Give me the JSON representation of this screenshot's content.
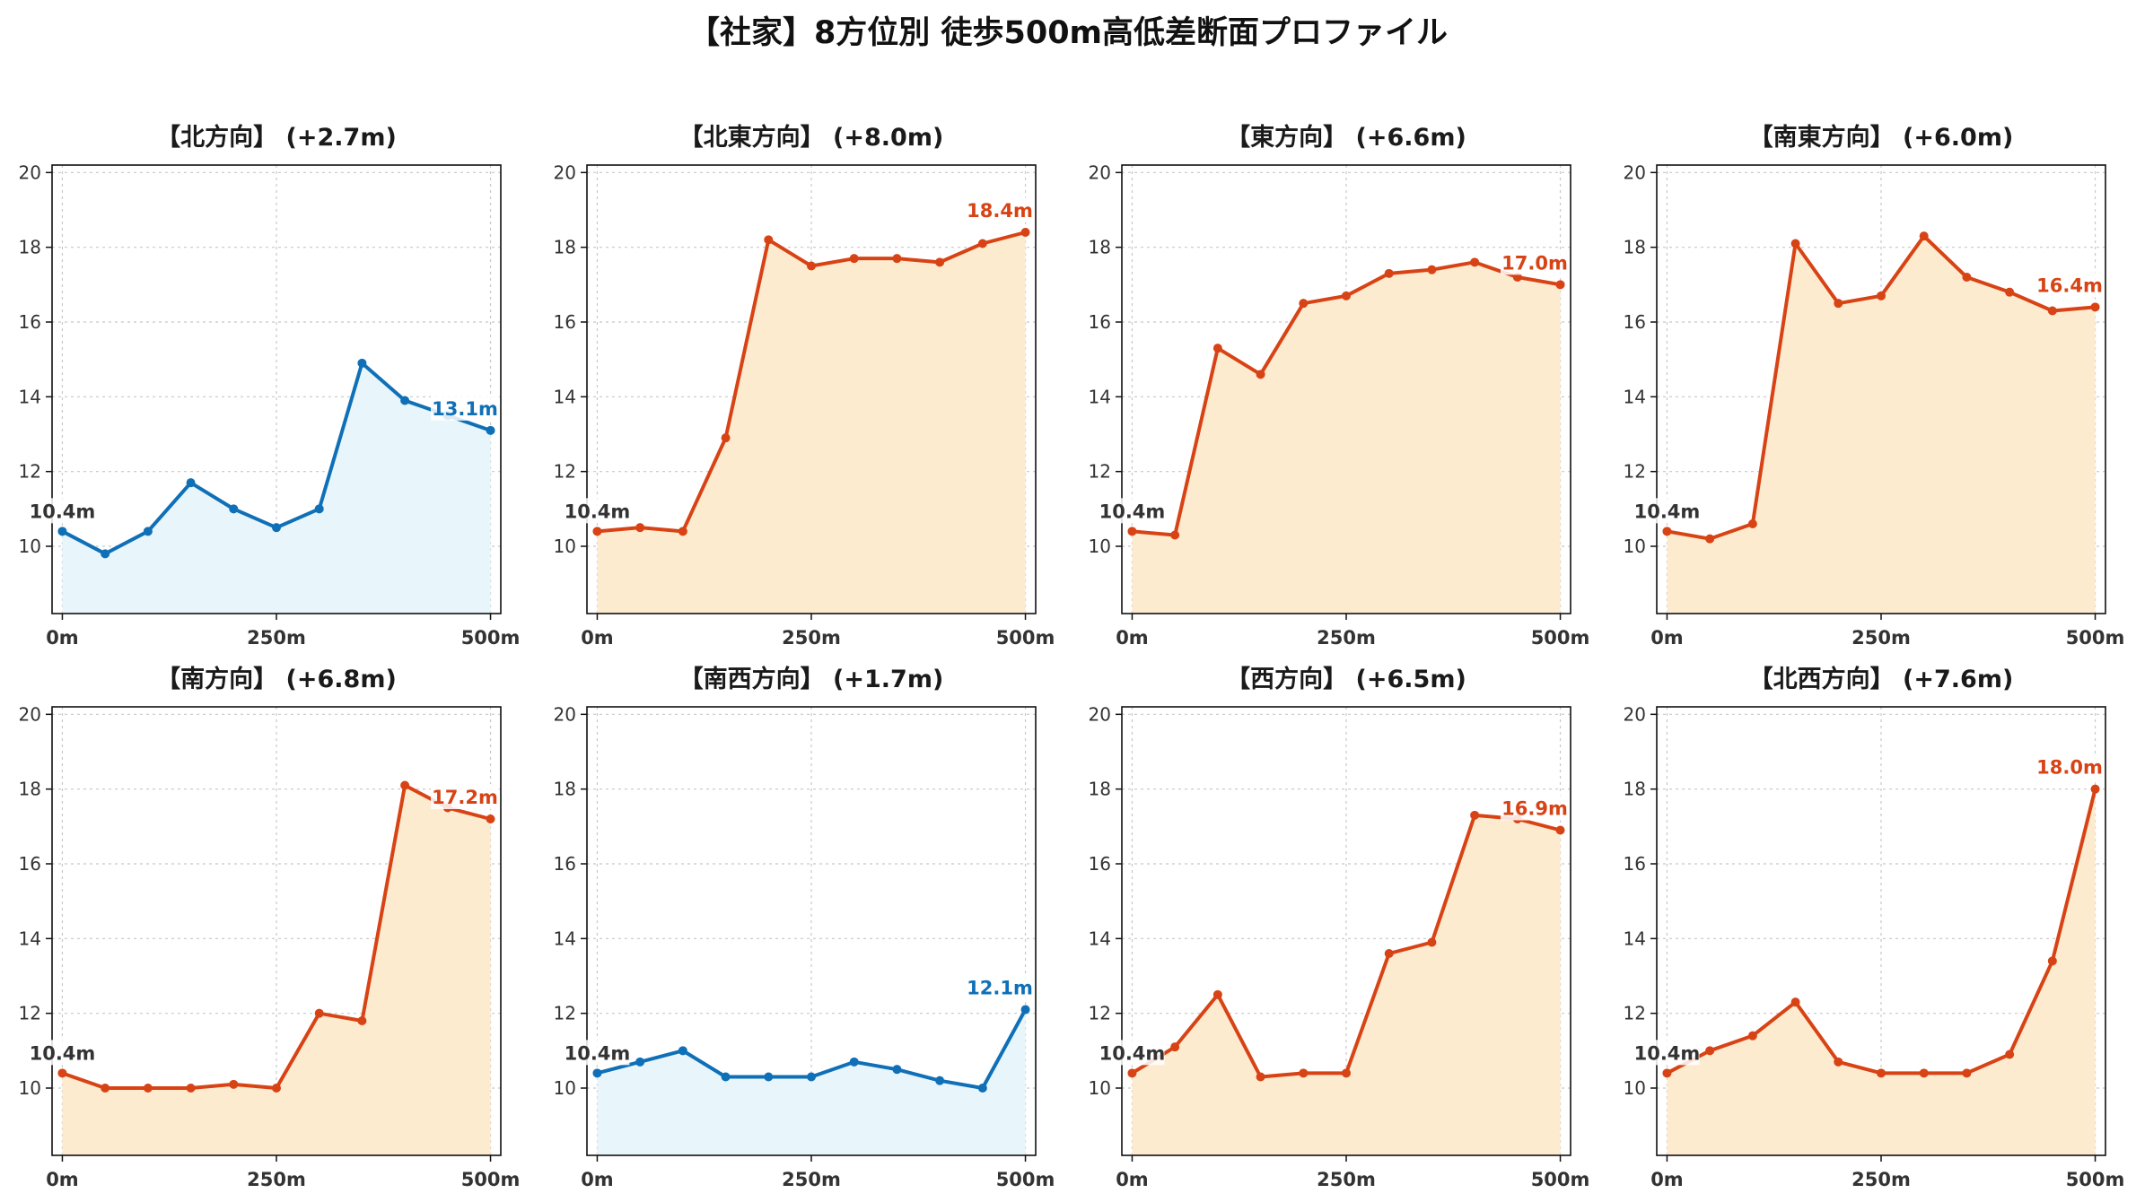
{
  "title": "【社家】8方位別 徒歩500m高低差断面プロファイル",
  "colors": {
    "up": "#d84315",
    "up_fill": "#fdebd0",
    "down": "#0f70b7",
    "down_fill": "#e8f5fb"
  },
  "chart_data": [
    {
      "type": "area",
      "title": "【北方向】 (+2.7m)",
      "trend": "flat",
      "x": [
        0,
        50,
        100,
        150,
        200,
        250,
        300,
        350,
        400,
        450,
        500
      ],
      "values": [
        10.4,
        9.8,
        10.4,
        11.7,
        11.0,
        10.5,
        11.0,
        14.9,
        13.9,
        13.5,
        13.1
      ],
      "start_label": "10.4m",
      "end_label": "13.1m",
      "xticks": [
        "0m",
        "250m",
        "500m"
      ],
      "yticks": [
        10,
        12,
        14,
        16,
        18,
        20
      ],
      "ylim": [
        8.2,
        20.2
      ],
      "xlim": [
        -12,
        512
      ],
      "grid": true
    },
    {
      "type": "area",
      "title": "【北東方向】 (+8.0m)",
      "trend": "up",
      "x": [
        0,
        50,
        100,
        150,
        200,
        250,
        300,
        350,
        400,
        450,
        500
      ],
      "values": [
        10.4,
        10.5,
        10.4,
        12.9,
        18.2,
        17.5,
        17.7,
        17.7,
        17.6,
        18.1,
        18.4
      ],
      "start_label": "10.4m",
      "end_label": "18.4m",
      "xticks": [
        "0m",
        "250m",
        "500m"
      ],
      "yticks": [
        10,
        12,
        14,
        16,
        18,
        20
      ],
      "ylim": [
        8.2,
        20.2
      ],
      "xlim": [
        -12,
        512
      ],
      "grid": true
    },
    {
      "type": "area",
      "title": "【東方向】 (+6.6m)",
      "trend": "up",
      "x": [
        0,
        50,
        100,
        150,
        200,
        250,
        300,
        350,
        400,
        450,
        500
      ],
      "values": [
        10.4,
        10.3,
        15.3,
        14.6,
        16.5,
        16.7,
        17.3,
        17.4,
        17.6,
        17.2,
        17.0
      ],
      "start_label": "10.4m",
      "end_label": "17.0m",
      "xticks": [
        "0m",
        "250m",
        "500m"
      ],
      "yticks": [
        10,
        12,
        14,
        16,
        18,
        20
      ],
      "ylim": [
        8.2,
        20.2
      ],
      "xlim": [
        -12,
        512
      ],
      "grid": true
    },
    {
      "type": "area",
      "title": "【南東方向】 (+6.0m)",
      "trend": "up",
      "x": [
        0,
        50,
        100,
        150,
        200,
        250,
        300,
        350,
        400,
        450,
        500
      ],
      "values": [
        10.4,
        10.2,
        10.6,
        18.1,
        16.5,
        16.7,
        18.3,
        17.2,
        16.8,
        16.3,
        16.4
      ],
      "start_label": "10.4m",
      "end_label": "16.4m",
      "xticks": [
        "0m",
        "250m",
        "500m"
      ],
      "yticks": [
        10,
        12,
        14,
        16,
        18,
        20
      ],
      "ylim": [
        8.2,
        20.2
      ],
      "xlim": [
        -12,
        512
      ],
      "grid": true
    },
    {
      "type": "area",
      "title": "【南方向】 (+6.8m)",
      "trend": "up",
      "x": [
        0,
        50,
        100,
        150,
        200,
        250,
        300,
        350,
        400,
        450,
        500
      ],
      "values": [
        10.4,
        10.0,
        10.0,
        10.0,
        10.1,
        10.0,
        12.0,
        11.8,
        18.1,
        17.5,
        17.2
      ],
      "start_label": "10.4m",
      "end_label": "17.2m",
      "xticks": [
        "0m",
        "250m",
        "500m"
      ],
      "yticks": [
        10,
        12,
        14,
        16,
        18,
        20
      ],
      "ylim": [
        8.2,
        20.2
      ],
      "xlim": [
        -12,
        512
      ],
      "grid": true
    },
    {
      "type": "area",
      "title": "【南西方向】 (+1.7m)",
      "trend": "flat",
      "x": [
        0,
        50,
        100,
        150,
        200,
        250,
        300,
        350,
        400,
        450,
        500
      ],
      "values": [
        10.4,
        10.7,
        11.0,
        10.3,
        10.3,
        10.3,
        10.7,
        10.5,
        10.2,
        10.0,
        12.1
      ],
      "start_label": "10.4m",
      "end_label": "12.1m",
      "xticks": [
        "0m",
        "250m",
        "500m"
      ],
      "yticks": [
        10,
        12,
        14,
        16,
        18,
        20
      ],
      "ylim": [
        8.2,
        20.2
      ],
      "xlim": [
        -12,
        512
      ],
      "grid": true
    },
    {
      "type": "area",
      "title": "【西方向】 (+6.5m)",
      "trend": "up",
      "x": [
        0,
        50,
        100,
        150,
        200,
        250,
        300,
        350,
        400,
        450,
        500
      ],
      "values": [
        10.4,
        11.1,
        12.5,
        10.3,
        10.4,
        10.4,
        13.6,
        13.9,
        17.3,
        17.2,
        16.9
      ],
      "start_label": "10.4m",
      "end_label": "16.9m",
      "xticks": [
        "0m",
        "250m",
        "500m"
      ],
      "yticks": [
        10,
        12,
        14,
        16,
        18,
        20
      ],
      "ylim": [
        8.2,
        20.2
      ],
      "xlim": [
        -12,
        512
      ],
      "grid": true
    },
    {
      "type": "area",
      "title": "【北西方向】 (+7.6m)",
      "trend": "up",
      "x": [
        0,
        50,
        100,
        150,
        200,
        250,
        300,
        350,
        400,
        450,
        500
      ],
      "values": [
        10.4,
        11.0,
        11.4,
        12.3,
        10.7,
        10.4,
        10.4,
        10.4,
        10.9,
        13.4,
        18.0
      ],
      "start_label": "10.4m",
      "end_label": "18.0m",
      "xticks": [
        "0m",
        "250m",
        "500m"
      ],
      "yticks": [
        10,
        12,
        14,
        16,
        18,
        20
      ],
      "ylim": [
        8.2,
        20.2
      ],
      "xlim": [
        -12,
        512
      ],
      "grid": true
    }
  ]
}
